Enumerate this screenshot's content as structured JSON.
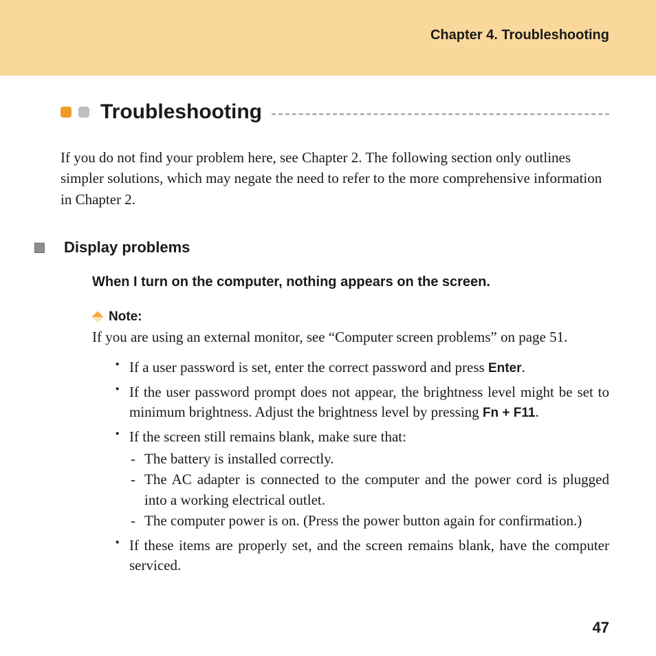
{
  "header": {
    "chapter_title": "Chapter 4. Troubleshooting",
    "band_color": "#fad79b"
  },
  "title": {
    "text": "Troubleshooting",
    "bullet_colors": [
      "#ee9b28",
      "#bfbfbf"
    ]
  },
  "intro": "If you do not find your problem here, see Chapter 2. The following section only outlines simpler solutions, which may negate the need to refer to the more comprehensive information in Chapter 2.",
  "section": {
    "title": "Display problems",
    "problem": "When I turn on the computer, nothing appears on the screen.",
    "note": {
      "label": "Note:",
      "body": "If you are using an external monitor, see “Computer screen problems” on page 51."
    },
    "items": {
      "i1_a": "If a user password is set, enter the correct password and press ",
      "i1_b": "Enter",
      "i1_c": ".",
      "i2_a": "If the user password prompt does not appear, the brightness level might be set to minimum brightness. Adjust the brightness level by pressing ",
      "i2_b": "Fn + F11",
      "i2_c": ".",
      "i3": "If the screen still remains blank, make sure that:",
      "i3_sub": {
        "s1": "The battery is installed correctly.",
        "s2": "The AC adapter is connected to the computer and the power cord is plugged into a working electrical outlet.",
        "s3": "The computer power is on. (Press the power button again for confirmation.)"
      },
      "i4": "If these items are properly set, and the screen remains blank, have the computer serviced."
    }
  },
  "page_number": "47"
}
